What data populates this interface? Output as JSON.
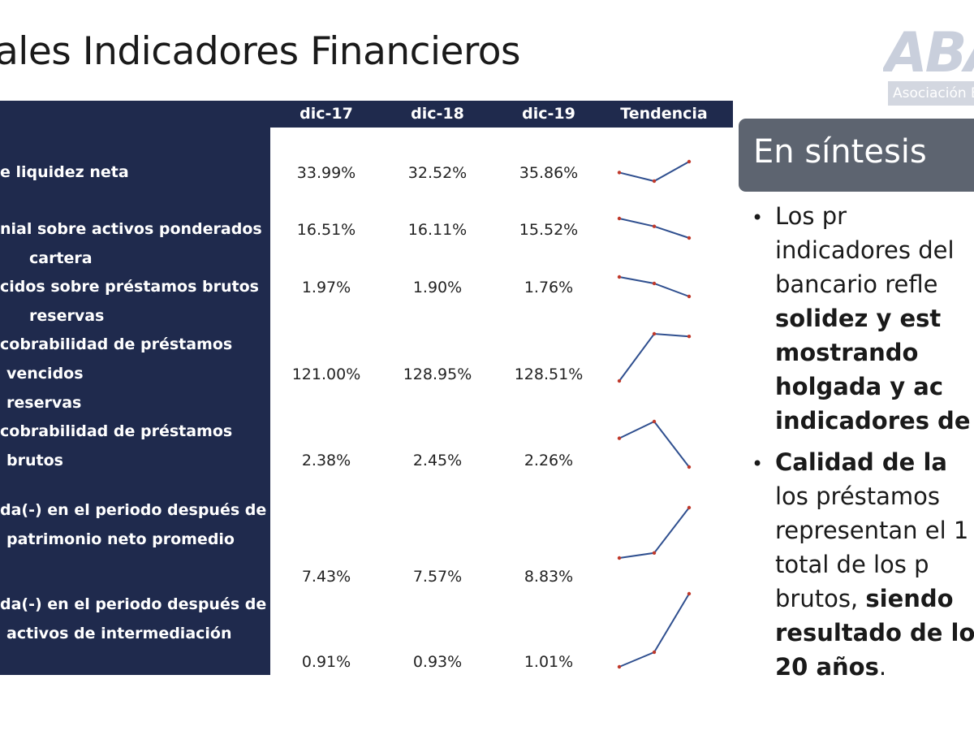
{
  "title": "ales Indicadores Financieros",
  "logo": {
    "mark": "ABA",
    "subtitle": "Asociación Ba"
  },
  "table": {
    "headers": [
      "dic-17",
      "dic-18",
      "dic-19",
      "Tendencia"
    ],
    "rows": [
      {
        "label_lines": [
          "e liquidez neta"
        ],
        "values": [
          "33.99%",
          "32.52%",
          "35.86%"
        ],
        "trend": [
          33.99,
          32.52,
          35.86
        ]
      },
      {
        "label_lines": [
          "nial sobre activos ponderados",
          "cartera"
        ],
        "values": [
          "16.51%",
          "16.11%",
          "15.52%"
        ],
        "trend": [
          16.51,
          16.11,
          15.52
        ]
      },
      {
        "label_lines": [
          "cidos sobre préstamos brutos",
          "reservas"
        ],
        "values": [
          "1.97%",
          "1.90%",
          "1.76%"
        ],
        "trend": [
          1.97,
          1.9,
          1.76
        ]
      },
      {
        "label_lines": [
          "cobrabilidad de préstamos",
          "vencidos",
          "reservas"
        ],
        "values": [
          "121.00%",
          "128.95%",
          "128.51%"
        ],
        "trend": [
          121.0,
          128.95,
          128.51
        ]
      },
      {
        "label_lines": [
          "cobrabilidad de préstamos",
          "brutos"
        ],
        "values": [
          "2.38%",
          "2.45%",
          "2.26%"
        ],
        "trend": [
          2.38,
          2.45,
          2.26
        ]
      },
      {
        "label_lines": [
          "da(-) en el periodo después de",
          "patrimonio neto promedio"
        ],
        "values": [
          "7.43%",
          "7.57%",
          "8.83%"
        ],
        "trend": [
          7.43,
          7.57,
          8.83
        ]
      },
      {
        "label_lines": [
          "da(-) en el periodo después de",
          "activos de intermediación"
        ],
        "values": [
          "0.91%",
          "0.93%",
          "1.01%"
        ],
        "trend": [
          0.91,
          0.93,
          1.01
        ]
      }
    ]
  },
  "synthesis": {
    "title": "En síntesis",
    "bullets": [
      {
        "lines": [
          {
            "text": "Los        pr",
            "bold": false
          },
          {
            "text": "indicadores del",
            "bold": false
          },
          {
            "text": "bancario    refle",
            "bold": false
          },
          {
            "text": "solidez  y  est",
            "bold": true
          },
          {
            "text": "mostrando",
            "bold": true
          },
          {
            "text": "holgada  y  ac",
            "bold": true
          },
          {
            "text": "indicadores de s",
            "bold": true
          }
        ]
      },
      {
        "lines": [
          {
            "segments": [
              {
                "text": "Calidad  de  la",
                "bold": true
              }
            ]
          },
          {
            "segments": [
              {
                "text": "los  préstamos",
                "bold": false
              }
            ]
          },
          {
            "segments": [
              {
                "text": "representan el 1",
                "bold": false
              }
            ]
          },
          {
            "segments": [
              {
                "text": "total  de  los  p",
                "bold": false
              }
            ]
          },
          {
            "segments": [
              {
                "text": "brutos, ",
                "bold": false
              },
              {
                "text": "siendo",
                "bold": true
              }
            ]
          },
          {
            "segments": [
              {
                "text": "resultado de los",
                "bold": true
              }
            ]
          },
          {
            "segments": [
              {
                "text": "20 años",
                "bold": true
              },
              {
                "text": ".",
                "bold": false
              }
            ]
          }
        ]
      }
    ]
  },
  "colors": {
    "navy": "#1f2a4d",
    "trend_line": "#2f4f8f",
    "trend_marker": "#c0392b",
    "synth_box": "#5d6470"
  }
}
